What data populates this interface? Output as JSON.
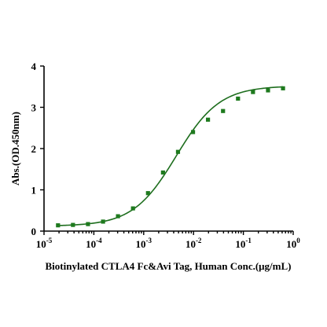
{
  "chart_data": {
    "type": "scatter",
    "xscale": "log",
    "x_axis_label": "Biotinylated CTLA4 Fc&Avi Tag, Human Conc.(μg/mL)",
    "y_axis_label": "Abs.(OD.450nm)",
    "xlim": [
      1e-05,
      1
    ],
    "ylim": [
      0,
      4
    ],
    "x_ticks": [
      {
        "value": 1e-05,
        "base": "10",
        "exp": "-5"
      },
      {
        "value": 0.0001,
        "base": "10",
        "exp": "-4"
      },
      {
        "value": 0.001,
        "base": "10",
        "exp": "-3"
      },
      {
        "value": 0.01,
        "base": "10",
        "exp": "-2"
      },
      {
        "value": 0.1,
        "base": "10",
        "exp": "-1"
      },
      {
        "value": 1,
        "base": "10",
        "exp": "0"
      }
    ],
    "y_ticks": [
      "0",
      "1",
      "2",
      "3",
      "4"
    ],
    "color": "#1e7a1e",
    "points": [
      {
        "x": 1.91e-05,
        "y": 0.14
      },
      {
        "x": 3.81e-05,
        "y": 0.15
      },
      {
        "x": 7.63e-05,
        "y": 0.17
      },
      {
        "x": 0.000153,
        "y": 0.23
      },
      {
        "x": 0.000305,
        "y": 0.36
      },
      {
        "x": 0.00061,
        "y": 0.55
      },
      {
        "x": 0.00122,
        "y": 0.92
      },
      {
        "x": 0.00244,
        "y": 1.42
      },
      {
        "x": 0.00488,
        "y": 1.92
      },
      {
        "x": 0.00977,
        "y": 2.4
      },
      {
        "x": 0.0195,
        "y": 2.7
      },
      {
        "x": 0.0391,
        "y": 2.91
      },
      {
        "x": 0.0781,
        "y": 3.21
      },
      {
        "x": 0.156,
        "y": 3.37
      },
      {
        "x": 0.3125,
        "y": 3.41
      },
      {
        "x": 0.625,
        "y": 3.46
      }
    ],
    "fit": {
      "bottom": 0.12,
      "top": 3.52,
      "ec50": 0.0045,
      "hill": 1.0,
      "x_range": [
        1.91e-05,
        0.625
      ]
    }
  }
}
